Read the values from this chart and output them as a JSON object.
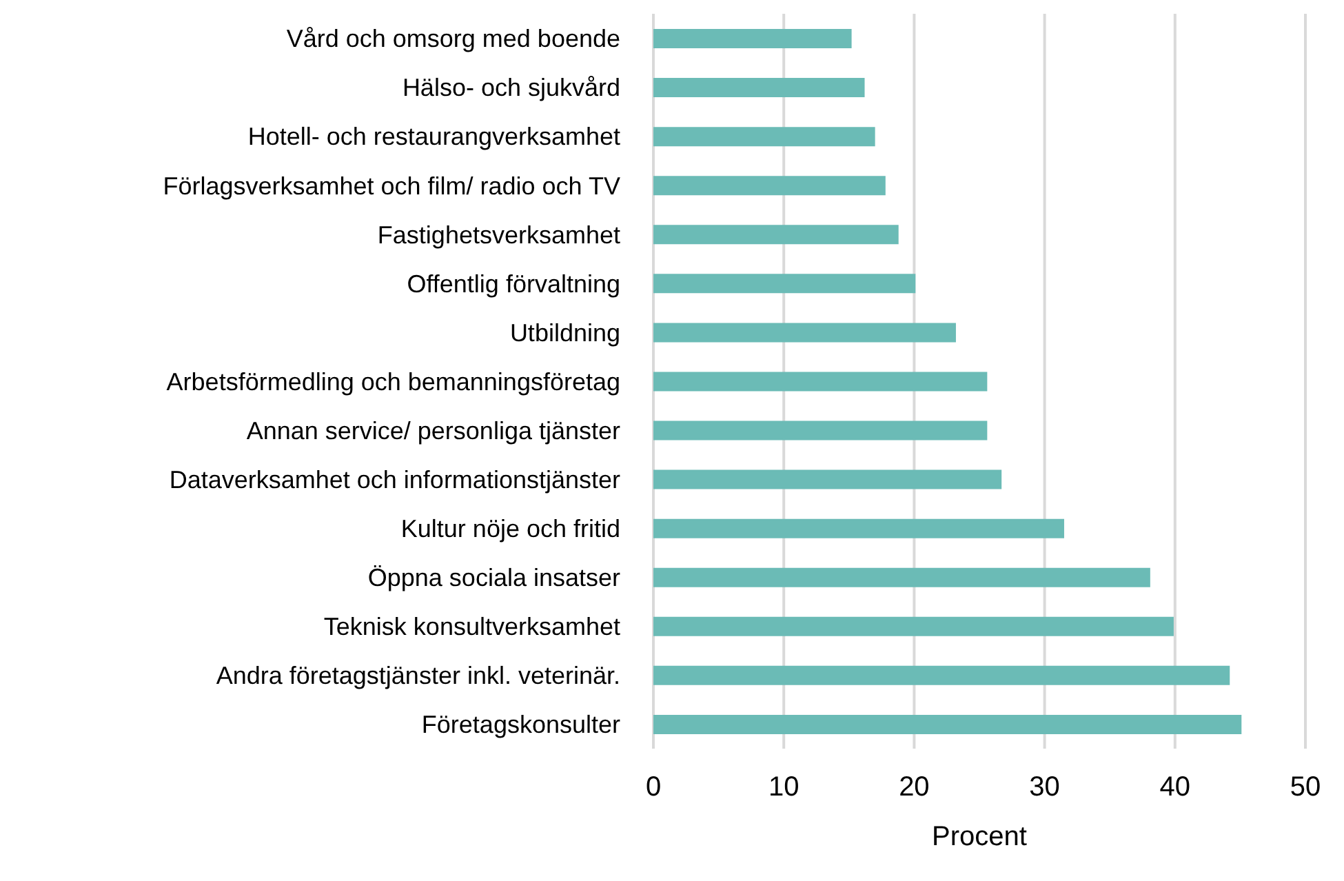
{
  "chart_data": {
    "type": "bar",
    "orientation": "horizontal",
    "xlabel": "Procent",
    "categories": [
      "Vård och omsorg med boende",
      "Hälso- och sjukvård",
      "Hotell- och restaurangverksamhet",
      "Förlagsverksamhet och film/ radio och TV",
      "Fastighetsverksamhet",
      "Offentlig förvaltning",
      "Utbildning",
      "Arbetsförmedling och bemanningsföretag",
      "Annan service/ personliga tjänster",
      "Dataverksamhet och informationstjänster",
      "Kultur nöje och fritid",
      "Öppna sociala insatser",
      "Teknisk konsultverksamhet",
      "Andra företagstjänster inkl. veterinär.",
      "Företagskonsulter"
    ],
    "values": [
      15.2,
      16.2,
      17.0,
      17.8,
      18.8,
      20.1,
      23.2,
      25.6,
      25.6,
      26.7,
      31.5,
      38.1,
      39.9,
      44.2,
      45.1
    ],
    "color": "#6bbbb6",
    "xlim": [
      0,
      50
    ],
    "xticks": [
      0,
      10,
      20,
      30,
      40,
      50
    ],
    "grid": "x"
  }
}
